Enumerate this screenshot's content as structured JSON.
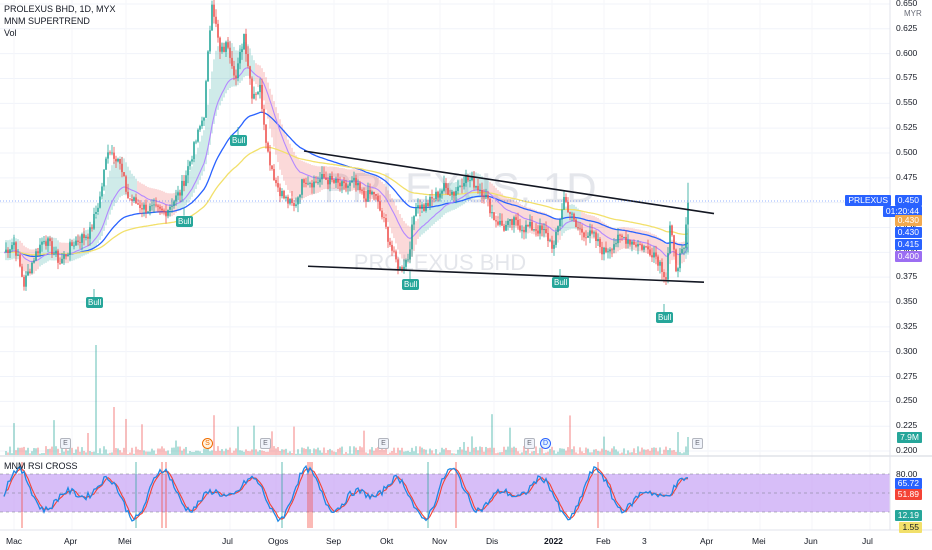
{
  "header": {
    "symbol_line": "PROLEXUS BHD, 1D, MYX",
    "indicator_1": "MNM SUPERTREND",
    "indicator_2": "Vol",
    "currency": "MYR"
  },
  "watermark": {
    "ticker": "PRLEXUS, 1D",
    "name": "PROLEXUS BHD"
  },
  "price_axis": {
    "ticks": [
      "0.650",
      "0.625",
      "0.600",
      "0.575",
      "0.550",
      "0.525",
      "0.500",
      "0.475",
      "0.450",
      "0.425",
      "0.400",
      "0.375",
      "0.350",
      "0.325",
      "0.300",
      "0.275",
      "0.250",
      "0.225",
      "0.200"
    ],
    "min": 0.196,
    "max": 0.654
  },
  "price_labels": {
    "symbol": "PRLEXUS",
    "last": "0.450",
    "countdown": "01:20:44",
    "l1": "0.430",
    "l2": "0.430",
    "l3": "0.415",
    "l4": "0.400",
    "volume": "7.9M"
  },
  "colors": {
    "up": "#26a69a",
    "down": "#ef5350",
    "ema_blue": "#2962ff",
    "ema_yellow": "#f2e06b",
    "ema_purple": "#b388ff",
    "ema_red": "#f06292",
    "rsi_band": "#c6a3f5",
    "stoch_k": "#1e88e5",
    "stoch_d": "#f44336",
    "accent": "#2962ff"
  },
  "signals": {
    "bull_label": "Bull"
  },
  "events": [
    {
      "day": 30,
      "letter": "E",
      "kind": "earnings"
    },
    {
      "day": 101,
      "letter": "S",
      "kind": "split"
    },
    {
      "day": 130,
      "letter": "E",
      "kind": "earnings"
    },
    {
      "day": 189,
      "letter": "E",
      "kind": "earnings"
    },
    {
      "day": 262,
      "letter": "E",
      "kind": "earnings"
    },
    {
      "day": 270,
      "letter": "D",
      "kind": "dividend"
    },
    {
      "day": 346,
      "letter": "E",
      "kind": "earnings"
    }
  ],
  "rsi_panel": {
    "title": "MNM RSI CROSS",
    "ticks": [
      "80.00"
    ],
    "values": {
      "k": "65.72",
      "d": "51.89",
      "low": "12.19",
      "tiny": "1.55"
    }
  },
  "x_axis": {
    "labels": [
      {
        "text": "Mac",
        "day": 5
      },
      {
        "text": "Apr",
        "day": 34
      },
      {
        "text": "Mei",
        "day": 61
      },
      {
        "text": "Jul",
        "day": 113
      },
      {
        "text": "Ogos",
        "day": 136
      },
      {
        "text": "Sep",
        "day": 165
      },
      {
        "text": "Okt",
        "day": 192
      },
      {
        "text": "Nov",
        "day": 218
      },
      {
        "text": "Dis",
        "day": 245
      },
      {
        "text": "2022",
        "day": 274
      },
      {
        "text": "Feb",
        "day": 300
      },
      {
        "text": "3",
        "day": 323
      },
      {
        "text": "Apr",
        "day": 352
      },
      {
        "text": "Mei",
        "day": 378
      },
      {
        "text": "Jun",
        "day": 404
      },
      {
        "text": "Jul",
        "day": 433
      }
    ]
  },
  "chart_data": {
    "type": "candlestick",
    "title": "PROLEXUS BHD, 1D, MYX",
    "ylabel": "MYR",
    "ylim": [
      0.196,
      0.654
    ],
    "trendlines": [
      {
        "name": "resistance",
        "from": {
          "day": 150,
          "price": 0.502
        },
        "to": {
          "day": 355,
          "price": 0.439
        }
      },
      {
        "name": "support",
        "from": {
          "day": 152,
          "price": 0.386
        },
        "to": {
          "day": 350,
          "price": 0.37
        }
      }
    ],
    "bull_signals": [
      {
        "day": 45,
        "price": 0.355
      },
      {
        "day": 90,
        "price": 0.437
      },
      {
        "day": 117,
        "price": 0.518
      },
      {
        "day": 203,
        "price": 0.373
      },
      {
        "day": 278,
        "price": 0.375
      },
      {
        "day": 330,
        "price": 0.34
      }
    ],
    "keypoints": [
      [
        0,
        0.4
      ],
      [
        5,
        0.41
      ],
      [
        10,
        0.368
      ],
      [
        15,
        0.395
      ],
      [
        20,
        0.415
      ],
      [
        28,
        0.39
      ],
      [
        35,
        0.41
      ],
      [
        43,
        0.42
      ],
      [
        48,
        0.455
      ],
      [
        52,
        0.505
      ],
      [
        57,
        0.495
      ],
      [
        62,
        0.455
      ],
      [
        70,
        0.445
      ],
      [
        80,
        0.44
      ],
      [
        88,
        0.46
      ],
      [
        95,
        0.505
      ],
      [
        100,
        0.54
      ],
      [
        104,
        0.655
      ],
      [
        108,
        0.6
      ],
      [
        112,
        0.61
      ],
      [
        116,
        0.575
      ],
      [
        120,
        0.62
      ],
      [
        124,
        0.56
      ],
      [
        128,
        0.565
      ],
      [
        132,
        0.5
      ],
      [
        136,
        0.47
      ],
      [
        140,
        0.455
      ],
      [
        145,
        0.445
      ],
      [
        150,
        0.475
      ],
      [
        155,
        0.47
      ],
      [
        160,
        0.475
      ],
      [
        165,
        0.47
      ],
      [
        170,
        0.465
      ],
      [
        175,
        0.47
      ],
      [
        180,
        0.455
      ],
      [
        185,
        0.46
      ],
      [
        190,
        0.43
      ],
      [
        195,
        0.395
      ],
      [
        198,
        0.383
      ],
      [
        202,
        0.395
      ],
      [
        206,
        0.45
      ],
      [
        210,
        0.445
      ],
      [
        215,
        0.455
      ],
      [
        220,
        0.465
      ],
      [
        225,
        0.46
      ],
      [
        230,
        0.475
      ],
      [
        235,
        0.47
      ],
      [
        240,
        0.46
      ],
      [
        245,
        0.435
      ],
      [
        250,
        0.425
      ],
      [
        255,
        0.43
      ],
      [
        260,
        0.425
      ],
      [
        265,
        0.425
      ],
      [
        270,
        0.42
      ],
      [
        275,
        0.405
      ],
      [
        280,
        0.455
      ],
      [
        283,
        0.44
      ],
      [
        286,
        0.425
      ],
      [
        290,
        0.42
      ],
      [
        295,
        0.415
      ],
      [
        300,
        0.4
      ],
      [
        305,
        0.41
      ],
      [
        310,
        0.415
      ],
      [
        315,
        0.41
      ],
      [
        320,
        0.405
      ],
      [
        325,
        0.4
      ],
      [
        329,
        0.385
      ],
      [
        331,
        0.375
      ],
      [
        333,
        0.425
      ],
      [
        336,
        0.385
      ],
      [
        338,
        0.395
      ],
      [
        340,
        0.4
      ],
      [
        342,
        0.45
      ]
    ],
    "last": {
      "price": 0.45,
      "high": 0.47,
      "low": 0.4
    }
  }
}
